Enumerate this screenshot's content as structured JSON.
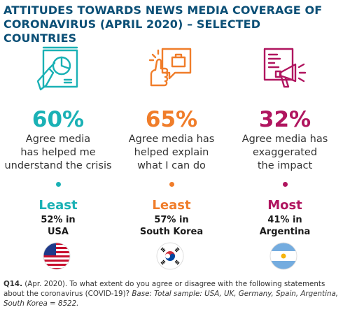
{
  "title_line1": "ATTITUDES TOWARDS NEWS MEDIA COVERAGE OF",
  "title_line2": "CORONAVIRUS (APRIL 2020) – SELECTED COUNTRIES",
  "columns": [
    {
      "percent": "60%",
      "desc_line1": "Agree media",
      "desc_line2": "has helped me",
      "desc_line3": "understand the crisis",
      "rank": "Least",
      "detail_line1": "52% in",
      "detail_line2": "USA",
      "color": "#1ab1b5",
      "icon": "chart-presentation-icon",
      "flag": "usa-flag"
    },
    {
      "percent": "65%",
      "desc_line1": "Agree media has",
      "desc_line2": "helped explain",
      "desc_line3": "what I can do",
      "rank": "Least",
      "detail_line1": "57% in",
      "detail_line2": "South Korea",
      "color": "#f07d2a",
      "icon": "thumbs-up-briefcase-icon",
      "flag": "south-korea-flag"
    },
    {
      "percent": "32%",
      "desc_line1": "Agree media has",
      "desc_line2": "exaggerated",
      "desc_line3": "the impact",
      "rank": "Most",
      "detail_line1": "41% in",
      "detail_line2": "Argentina",
      "color": "#b0155f",
      "icon": "megaphone-news-icon",
      "flag": "argentina-flag"
    }
  ],
  "footnote": {
    "label": "Q14.",
    "question": " (Apr. 2020). To what extent do you agree or disagree with the following statements about the coronavirus (COVID-19)? ",
    "base": "Base: Total sample: USA, UK, Germany, Spain, Argentina, South Korea = 8522."
  }
}
